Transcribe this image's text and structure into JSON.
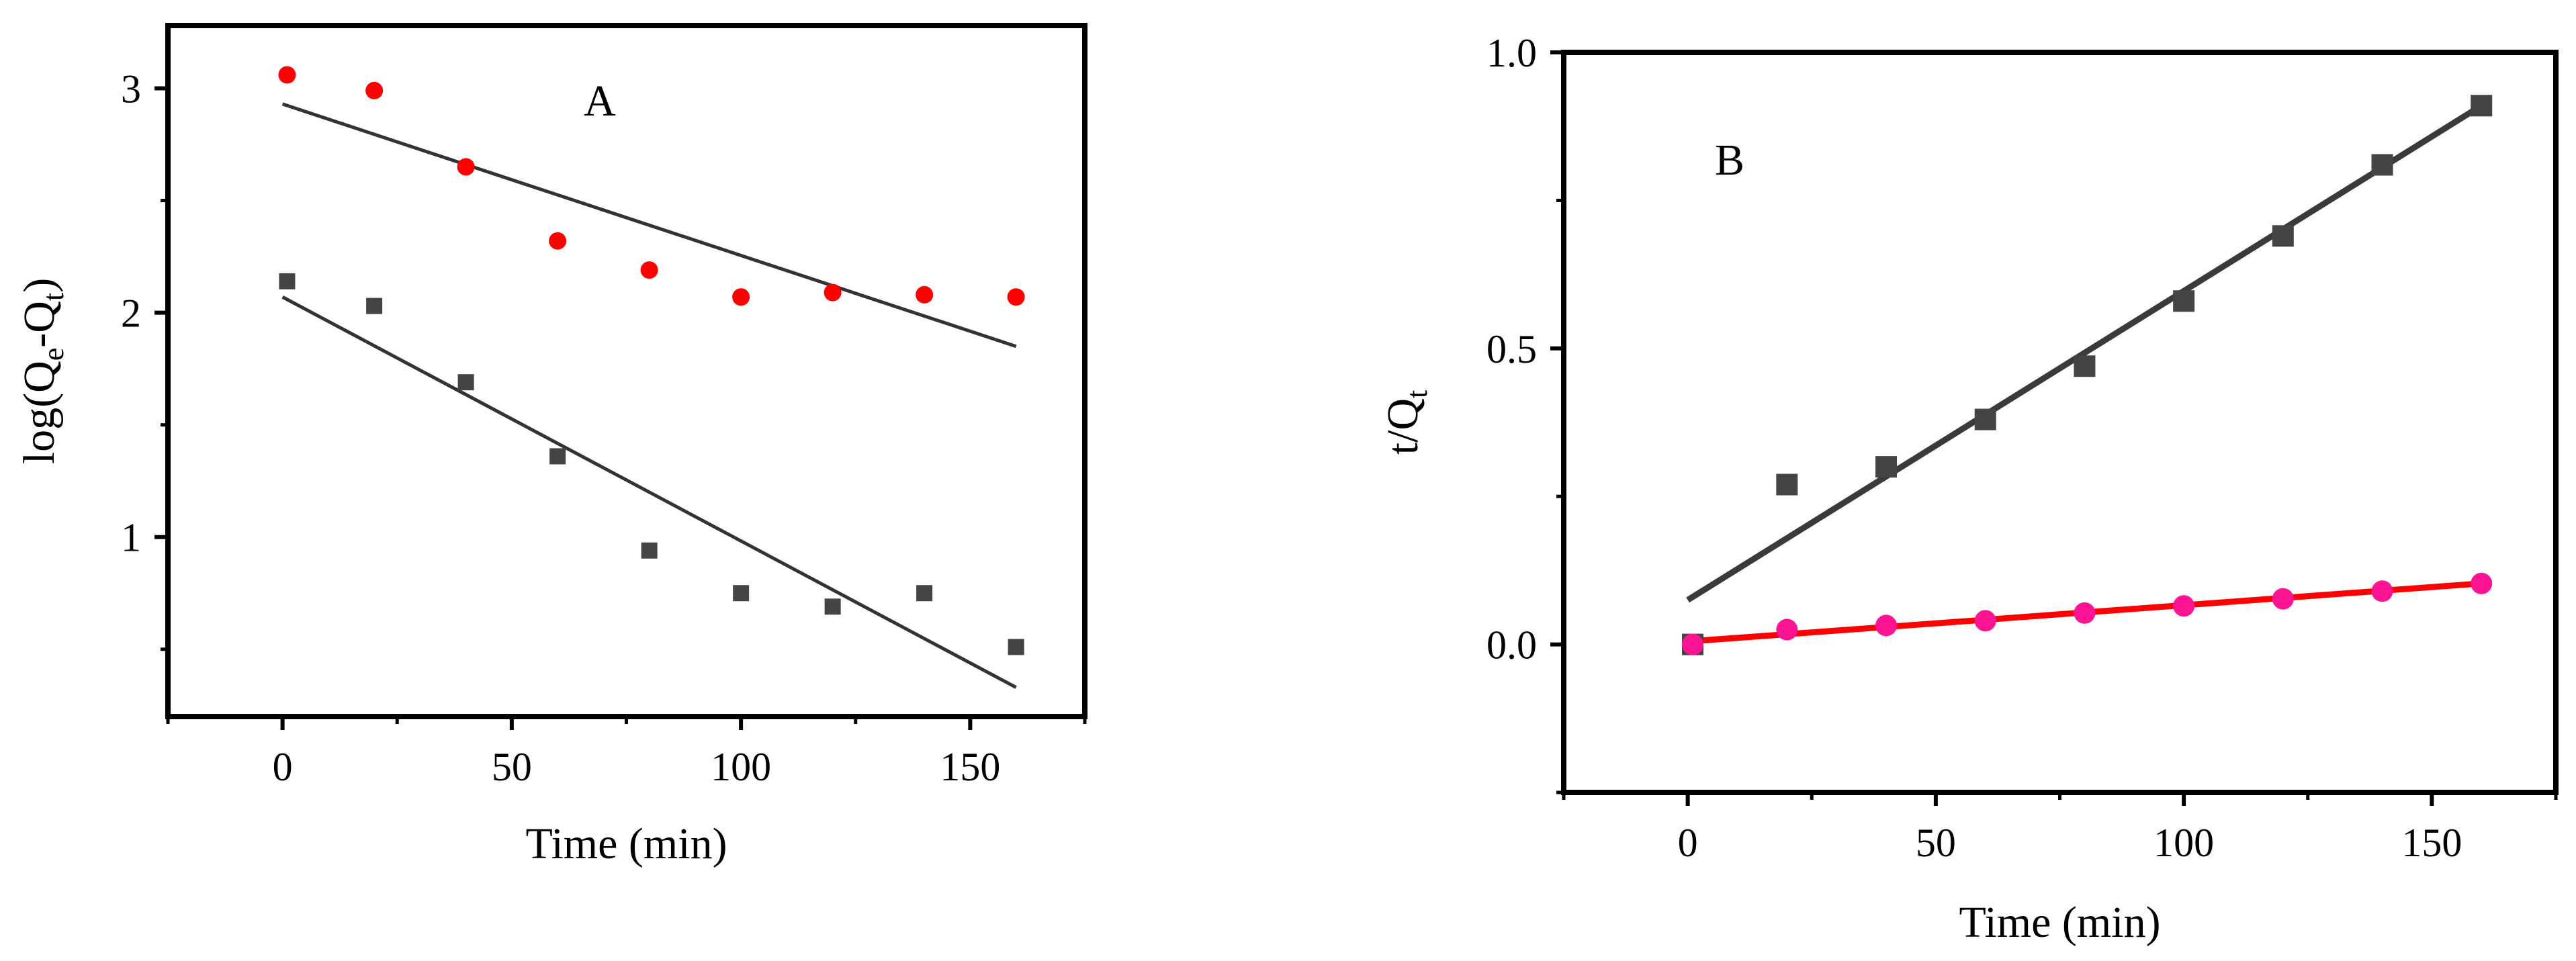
{
  "colors": {
    "series_square": "#444444",
    "series_circle_A": "#ff0000",
    "series_circle_B": "#ff1493",
    "fit_square": "#3a3a3a",
    "fit_circle_A": "#333333",
    "fit_circle_B": "#ff0000"
  },
  "chart_data": [
    {
      "type": "scatter",
      "panel_label": "A",
      "xlabel": "Time (min)",
      "ylabel": "log(Qe-Qt)",
      "ylabel_parts": {
        "main": "log(Q",
        "sub1": "e",
        "mid": "-Q",
        "sub2": "t",
        "end": ")"
      },
      "xlim": [
        -25,
        175
      ],
      "ylim": [
        0.2,
        3.28
      ],
      "xticks": [
        0,
        50,
        100,
        150
      ],
      "xtick_labels": [
        "0",
        "50",
        "100",
        "150"
      ],
      "yticks": [
        1,
        2,
        3
      ],
      "ytick_labels": [
        "1",
        "2",
        "3"
      ],
      "grid": false,
      "series": [
        {
          "marker": "circle",
          "color": "#ff0000",
          "x": [
            1,
            20,
            40,
            60,
            80,
            100,
            120,
            140,
            160
          ],
          "y": [
            3.06,
            2.99,
            2.65,
            2.32,
            2.19,
            2.07,
            2.09,
            2.08,
            2.07
          ]
        },
        {
          "marker": "square",
          "color": "#444444",
          "x": [
            1,
            20,
            40,
            60,
            80,
            100,
            120,
            140,
            160
          ],
          "y": [
            2.14,
            2.03,
            1.69,
            1.36,
            0.94,
            0.75,
            0.69,
            0.75,
            0.51
          ]
        }
      ],
      "fits": [
        {
          "color": "#333333",
          "x": [
            0,
            160
          ],
          "y": [
            2.93,
            1.85
          ]
        },
        {
          "color": "#333333",
          "x": [
            0,
            160
          ],
          "y": [
            2.07,
            0.33
          ]
        }
      ]
    },
    {
      "type": "scatter",
      "panel_label": "B",
      "xlabel": "Time (min)",
      "ylabel": "t/Qt",
      "ylabel_parts": {
        "main": "t/Q",
        "sub": "t"
      },
      "xlim": [
        -25,
        175
      ],
      "ylim": [
        -0.25,
        1.0
      ],
      "xticks": [
        0,
        50,
        100,
        150
      ],
      "xtick_labels": [
        "0",
        "50",
        "100",
        "150"
      ],
      "yticks": [
        0.0,
        0.5,
        1.0
      ],
      "ytick_labels": [
        "0.0",
        "0.5",
        "1.0"
      ],
      "grid": false,
      "series": [
        {
          "marker": "square",
          "color": "#444444",
          "x": [
            1,
            20,
            40,
            60,
            80,
            100,
            120,
            140,
            160
          ],
          "y": [
            0.0,
            0.27,
            0.3,
            0.38,
            0.47,
            0.58,
            0.69,
            0.81,
            0.91
          ]
        },
        {
          "marker": "circle",
          "color": "#ff1493",
          "x": [
            1,
            20,
            40,
            60,
            80,
            100,
            120,
            140,
            160
          ],
          "y": [
            0.0,
            0.025,
            0.032,
            0.04,
            0.053,
            0.065,
            0.077,
            0.09,
            0.103
          ]
        }
      ],
      "fits": [
        {
          "color": "#3a3a3a",
          "x": [
            0,
            160
          ],
          "y": [
            0.075,
            0.91
          ]
        },
        {
          "color": "#ff0000",
          "x": [
            0,
            160
          ],
          "y": [
            0.005,
            0.103
          ]
        }
      ]
    }
  ]
}
